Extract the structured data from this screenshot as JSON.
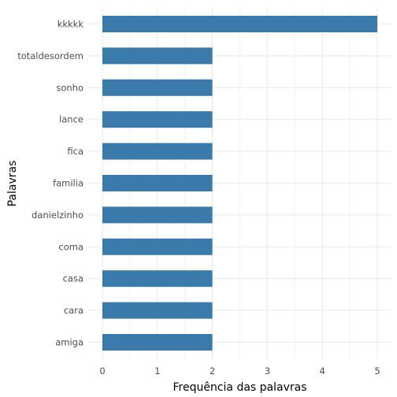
{
  "chart_data": {
    "type": "bar",
    "orientation": "horizontal",
    "categories": [
      "kkkkk",
      "totaldesordem",
      "sonho",
      "lance",
      "fica",
      "familia",
      "danielzinho",
      "coma",
      "casa",
      "cara",
      "amiga"
    ],
    "values": [
      5,
      2,
      2,
      2,
      2,
      2,
      2,
      2,
      2,
      2,
      2
    ],
    "xlabel": "Frequência das palavras",
    "ylabel": "Palavras",
    "xlim": [
      0,
      5
    ],
    "xticks": [
      0,
      1,
      2,
      3,
      4,
      5
    ],
    "grid": true,
    "bar_color": "#3a7bab",
    "grid_color": "#ebebeb"
  }
}
